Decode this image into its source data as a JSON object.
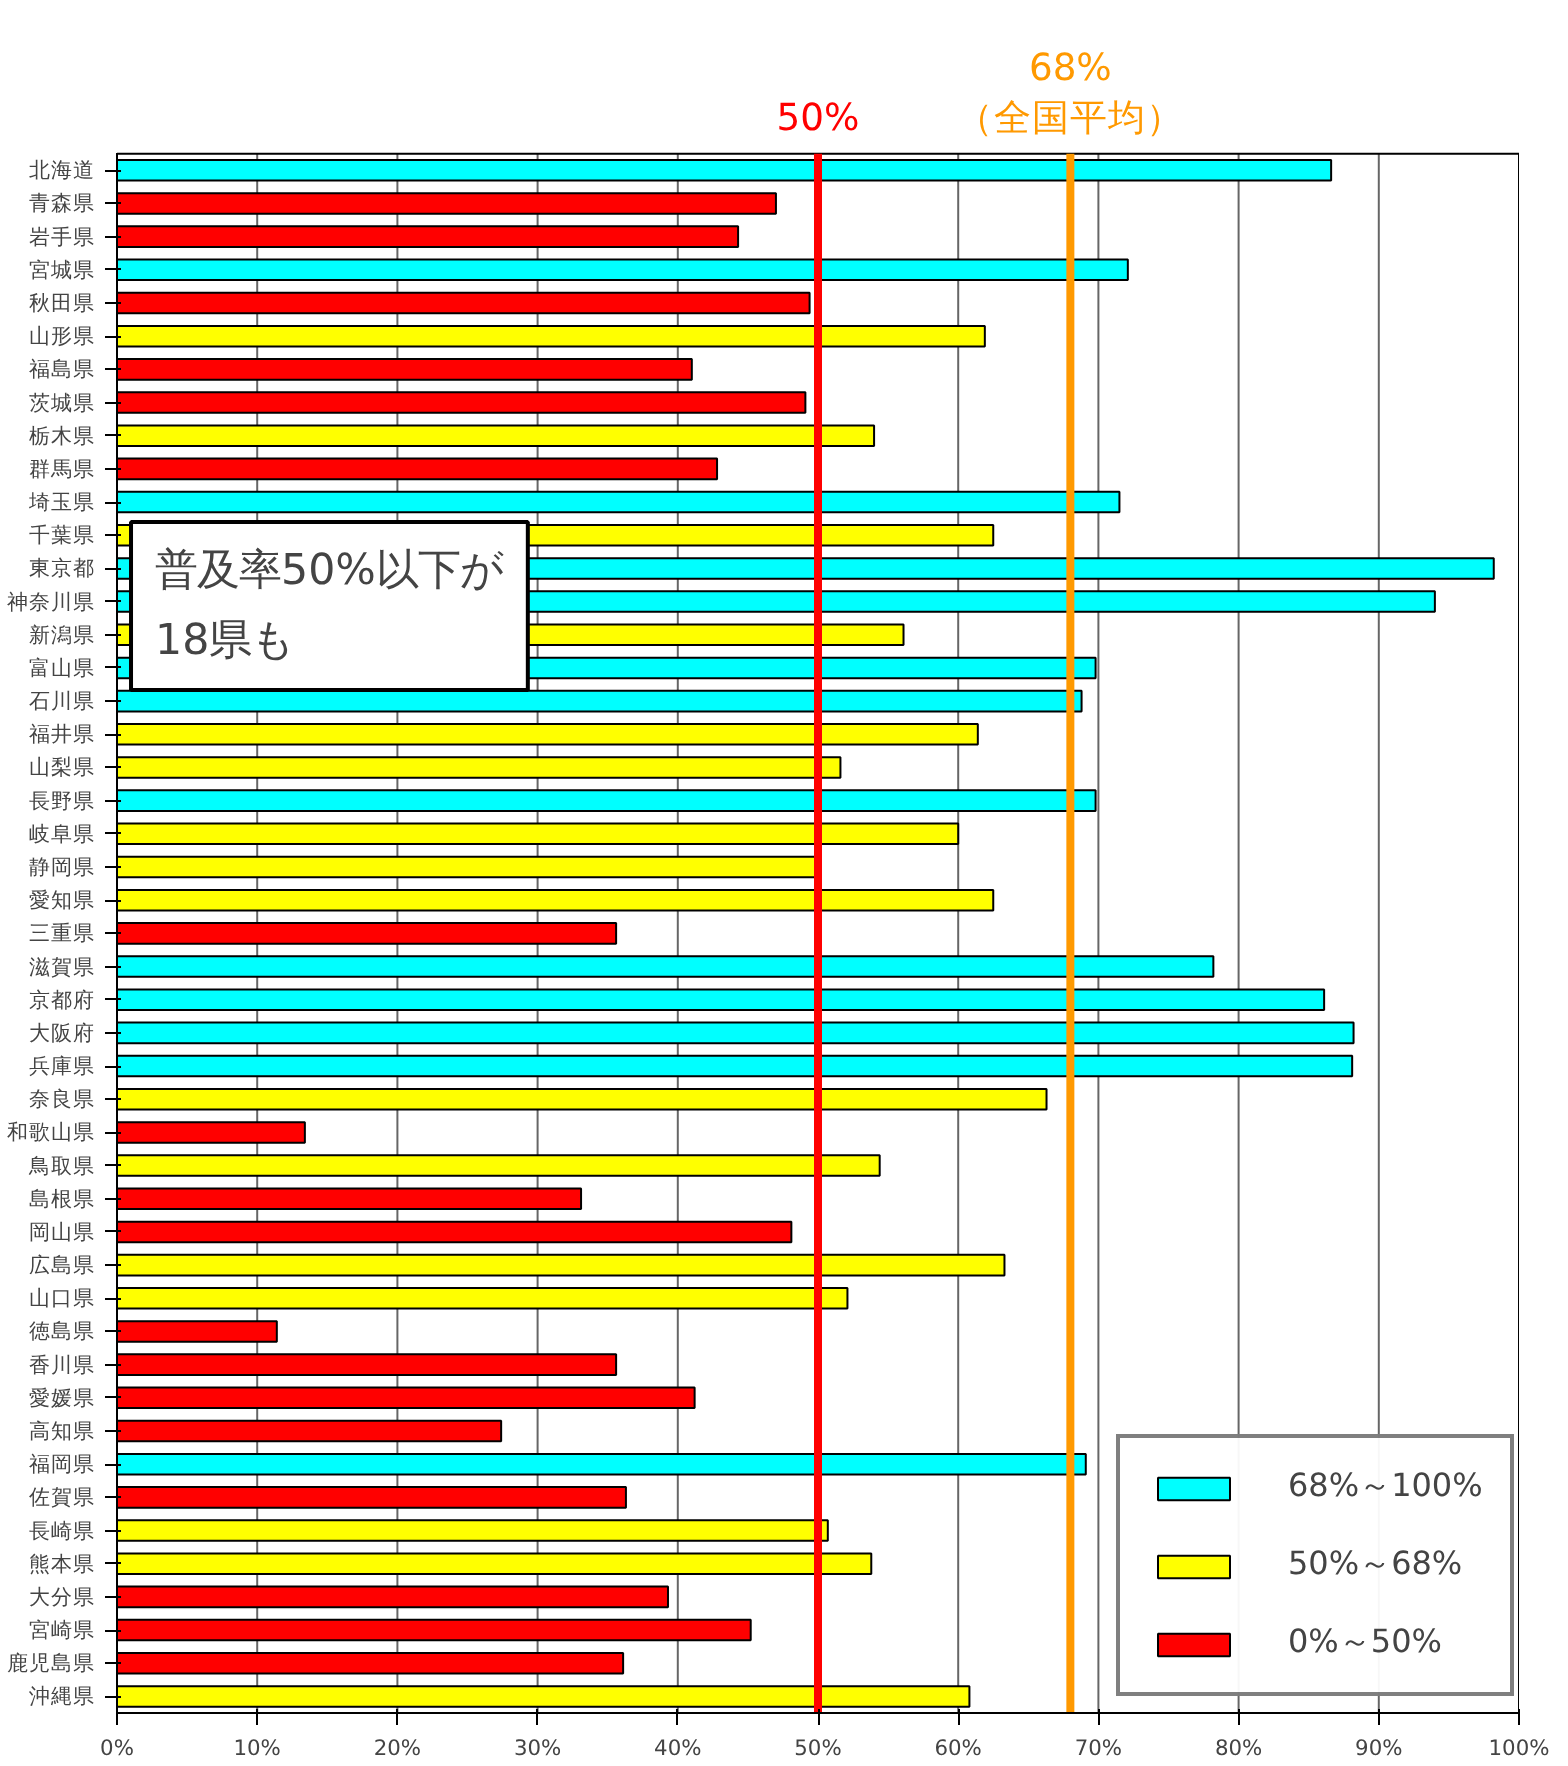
{
  "chart_data": {
    "type": "bar",
    "orientation": "horizontal",
    "categories": [
      "北海道",
      "青森県",
      "岩手県",
      "宮城県",
      "秋田県",
      "山形県",
      "福島県",
      "茨城県",
      "栃木県",
      "群馬県",
      "埼玉県",
      "千葉県",
      "東京都",
      "神奈川県",
      "新潟県",
      "富山県",
      "石川県",
      "福井県",
      "山梨県",
      "長野県",
      "岐阜県",
      "静岡県",
      "愛知県",
      "三重県",
      "滋賀県",
      "京都府",
      "大阪府",
      "兵庫県",
      "奈良県",
      "和歌山県",
      "鳥取県",
      "島根県",
      "岡山県",
      "広島県",
      "山口県",
      "徳島県",
      "香川県",
      "愛媛県",
      "高知県",
      "福岡県",
      "佐賀県",
      "長崎県",
      "熊本県",
      "大分県",
      "宮崎県",
      "鹿児島県",
      "沖縄県"
    ],
    "series": [
      {
        "name": "68%～100%",
        "color": "#00ffff",
        "values": [
          86.6,
          null,
          null,
          72.1,
          null,
          null,
          null,
          null,
          null,
          null,
          71.5,
          null,
          98.2,
          94.0,
          null,
          69.8,
          68.8,
          null,
          null,
          69.8,
          null,
          null,
          null,
          null,
          78.2,
          86.1,
          88.2,
          88.1,
          null,
          null,
          null,
          null,
          null,
          null,
          null,
          null,
          null,
          null,
          null,
          69.1,
          null,
          null,
          null,
          null,
          null,
          null,
          null
        ]
      },
      {
        "name": "50%～68%",
        "color": "#ffff00",
        "values": [
          null,
          null,
          null,
          null,
          null,
          61.9,
          null,
          null,
          54.0,
          null,
          null,
          62.5,
          null,
          null,
          56.1,
          null,
          null,
          61.4,
          51.6,
          null,
          60.0,
          50.0,
          62.5,
          null,
          null,
          null,
          null,
          null,
          66.3,
          null,
          54.4,
          null,
          null,
          63.3,
          52.1,
          null,
          null,
          null,
          null,
          null,
          null,
          50.7,
          53.8,
          null,
          null,
          null,
          60.8
        ]
      },
      {
        "name": "0%～50%",
        "color": "#ff0000",
        "values": [
          null,
          47.0,
          44.3,
          null,
          49.4,
          null,
          41.0,
          49.1,
          null,
          42.8,
          null,
          null,
          null,
          null,
          null,
          null,
          null,
          null,
          null,
          null,
          null,
          null,
          null,
          35.6,
          null,
          null,
          null,
          null,
          null,
          13.4,
          null,
          33.1,
          48.1,
          null,
          null,
          11.4,
          35.6,
          41.2,
          27.4,
          null,
          36.3,
          null,
          null,
          39.3,
          45.2,
          36.1,
          null
        ]
      }
    ],
    "xlim": [
      0,
      100
    ],
    "xticks": [
      {
        "value": 0,
        "label": "0%"
      },
      {
        "value": 10,
        "label": "10%"
      },
      {
        "value": 20,
        "label": "20%"
      },
      {
        "value": 30,
        "label": "30%"
      },
      {
        "value": 40,
        "label": "40%"
      },
      {
        "value": 50,
        "label": "50%"
      },
      {
        "value": 60,
        "label": "60%"
      },
      {
        "value": 70,
        "label": "70%"
      },
      {
        "value": 80,
        "label": "80%"
      },
      {
        "value": 90,
        "label": "90%"
      },
      {
        "value": 100,
        "label": "100%"
      }
    ],
    "grid": "x",
    "legend": "bottom right",
    "ref_lines": [
      {
        "axis": "x",
        "value": 50,
        "label": "50%",
        "color": "#ff0000"
      },
      {
        "axis": "x",
        "value": 68,
        "label": "68%\n（全国平均）",
        "color": "#ff9900"
      }
    ],
    "annotations": [
      "普及率50%以下が\n18県も"
    ]
  }
}
